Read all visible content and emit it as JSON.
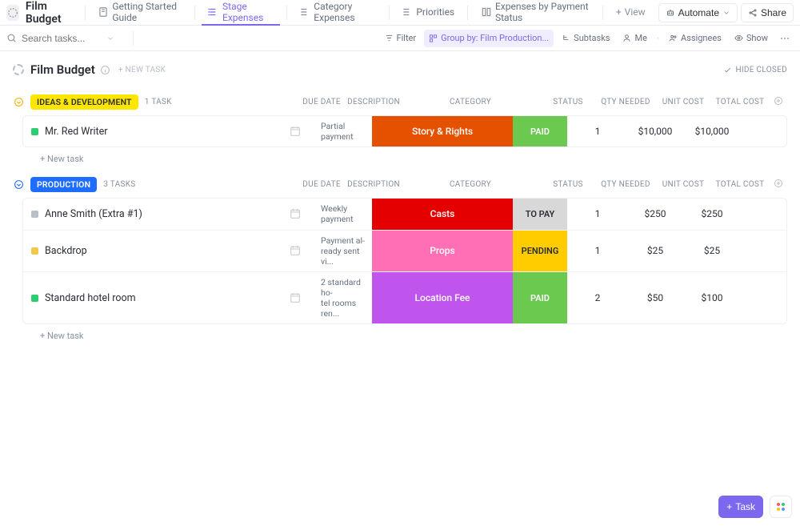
{
  "header": {
    "title": "Film Budget",
    "tabs": [
      {
        "label": "Getting Started Guide",
        "active": false
      },
      {
        "label": "Stage Expenses",
        "active": true
      },
      {
        "label": "Category Expenses",
        "active": false
      },
      {
        "label": "Priorities",
        "active": false
      },
      {
        "label": "Expenses by Payment Status",
        "active": false
      }
    ],
    "add_view_label": "View",
    "automate_label": "Automate",
    "share_label": "Share"
  },
  "toolbar": {
    "search_placeholder": "Search tasks...",
    "filter_label": "Filter",
    "group_by_label": "Group by: Film Production...",
    "subtasks_label": "Subtasks",
    "me_label": "Me",
    "assignees_label": "Assignees",
    "show_label": "Show"
  },
  "list": {
    "title": "Film Budget",
    "new_task_label": "+ NEW TASK",
    "hide_closed_label": "HIDE CLOSED",
    "add_task_label": "+ New task"
  },
  "columns": {
    "due_date": "DUE DATE",
    "description": "DESCRIPTION",
    "category": "CATEGORY",
    "status": "STATUS",
    "qty_needed": "QTY NEEDED",
    "unit_cost": "UNIT COST",
    "total_cost": "TOTAL COST"
  },
  "colors": {
    "accent": "#7b68ee",
    "group_collapse_yellow": "#f2b202",
    "group_collapse_blue": "#1f6dff"
  },
  "groups": [
    {
      "name": "IDEAS & DEVELOPMENT",
      "tag_bg": "#ffe600",
      "tag_fg": "#2a2e34",
      "collapse_color": "#f2b202",
      "count_label": "1 TASK",
      "rows": [
        {
          "status_color": "#2ecd6f",
          "name": "Mr. Red Writer",
          "description": "Partial payment",
          "category": "Story & Rights",
          "category_bg": "#e65100",
          "category_fg": "#ffffff",
          "status": "PAID",
          "status_bg": "#6bc950",
          "status_fg": "#ffffff",
          "qty": "1",
          "unit_cost": "$10,000",
          "total_cost": "$10,000"
        }
      ]
    },
    {
      "name": "PRODUCTION",
      "tag_bg": "#1f6dff",
      "tag_fg": "#ffffff",
      "collapse_color": "#1f6dff",
      "count_label": "3 TASKS",
      "rows": [
        {
          "status_color": "#b9bec7",
          "name": "Anne Smith (Extra #1)",
          "description": "Weekly payment",
          "category": "Casts",
          "category_bg": "#e50000",
          "category_fg": "#ffffff",
          "status": "TO PAY",
          "status_bg": "#d8d8d8",
          "status_fg": "#2a2e34",
          "qty": "1",
          "unit_cost": "$250",
          "total_cost": "$250"
        },
        {
          "status_color": "#f2c94c",
          "name": "Backdrop",
          "description": "Payment al-ready sent vi...",
          "category": "Props",
          "category_bg": "#ff6fb5",
          "category_fg": "#ffffff",
          "status": "PENDING",
          "status_bg": "#ffcc00",
          "status_fg": "#2a2e34",
          "qty": "1",
          "unit_cost": "$25",
          "total_cost": "$25"
        },
        {
          "status_color": "#2ecd6f",
          "name": "Standard hotel room",
          "description": "2 standard ho-tel rooms ren...",
          "category": "Location Fee",
          "category_bg": "#bf55ec",
          "category_fg": "#ffffff",
          "status": "PAID",
          "status_bg": "#6bc950",
          "status_fg": "#ffffff",
          "qty": "2",
          "unit_cost": "$50",
          "total_cost": "$100"
        }
      ]
    }
  ],
  "fab": {
    "task_label": "Task"
  }
}
